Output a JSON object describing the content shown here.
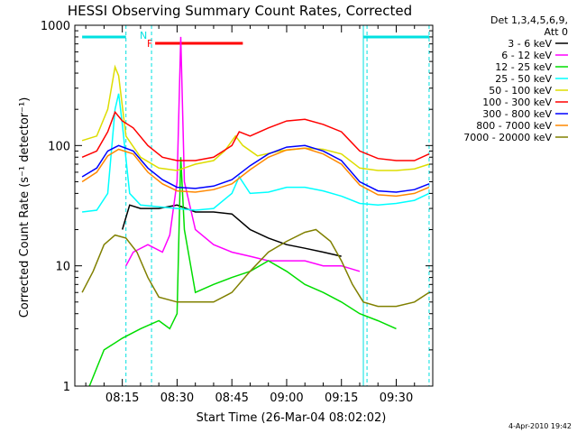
{
  "chart_data": {
    "type": "line",
    "title": "HESSI Observing Summary Count Rates, Corrected",
    "xlabel": "Start Time (26-Mar-04 08:02:02)",
    "ylabel": "Corrected Count Rate (s⁻¹ detector⁻¹)",
    "y_scale": "log",
    "ylim": [
      1,
      1000
    ],
    "xlim": [
      "08:02",
      "09:40"
    ],
    "x_ticks": [
      "08:15",
      "08:30",
      "08:45",
      "09:00",
      "09:15",
      "09:30"
    ],
    "y_ticks": [
      "1",
      "10",
      "100",
      "1000"
    ],
    "legend_header": [
      "Det 1,3,4,5,6,9,",
      "Att 0"
    ],
    "footer_date": "4-Apr-2010 19:42",
    "flags": {
      "N_label": "N",
      "F_label": "F"
    },
    "series": [
      {
        "name": "3 - 6 keV",
        "color": "#000000",
        "points": [
          [
            "08:15",
            20
          ],
          [
            "08:17",
            32
          ],
          [
            "08:20",
            30
          ],
          [
            "08:25",
            30
          ],
          [
            "08:30",
            32
          ],
          [
            "08:35",
            28
          ],
          [
            "08:40",
            28
          ],
          [
            "08:45",
            27
          ],
          [
            "08:50",
            20
          ],
          [
            "08:55",
            17
          ],
          [
            "09:00",
            15
          ],
          [
            "09:05",
            14
          ],
          [
            "09:10",
            13
          ],
          [
            "09:15",
            12
          ]
        ]
      },
      {
        "name": "6 - 12 keV",
        "color": "#ff00ff",
        "points": [
          [
            "08:16",
            10
          ],
          [
            "08:18",
            13
          ],
          [
            "08:22",
            15
          ],
          [
            "08:26",
            13
          ],
          [
            "08:28",
            18
          ],
          [
            "08:30",
            50
          ],
          [
            "08:31",
            800
          ],
          [
            "08:32",
            50
          ],
          [
            "08:35",
            20
          ],
          [
            "08:40",
            15
          ],
          [
            "08:45",
            13
          ],
          [
            "08:50",
            12
          ],
          [
            "08:55",
            11
          ],
          [
            "09:00",
            11
          ],
          [
            "09:05",
            11
          ],
          [
            "09:10",
            10
          ],
          [
            "09:15",
            10
          ],
          [
            "09:20",
            9
          ]
        ]
      },
      {
        "name": "12 - 25 keV",
        "color": "#00dd00",
        "points": [
          [
            "08:06",
            1
          ],
          [
            "08:10",
            2
          ],
          [
            "08:15",
            2.5
          ],
          [
            "08:20",
            3
          ],
          [
            "08:25",
            3.5
          ],
          [
            "08:28",
            3
          ],
          [
            "08:30",
            4
          ],
          [
            "08:31",
            80
          ],
          [
            "08:32",
            20
          ],
          [
            "08:35",
            6
          ],
          [
            "08:40",
            7
          ],
          [
            "08:45",
            8
          ],
          [
            "08:50",
            9
          ],
          [
            "08:55",
            11
          ],
          [
            "09:00",
            9
          ],
          [
            "09:05",
            7
          ],
          [
            "09:10",
            6
          ],
          [
            "09:15",
            5
          ],
          [
            "09:20",
            4
          ],
          [
            "09:25",
            3.5
          ],
          [
            "09:30",
            3
          ]
        ]
      },
      {
        "name": "25 - 50 keV",
        "color": "#00ffff",
        "points": [
          [
            "08:04",
            28
          ],
          [
            "08:08",
            29
          ],
          [
            "08:11",
            40
          ],
          [
            "08:13",
            200
          ],
          [
            "08:14",
            270
          ],
          [
            "08:15",
            150
          ],
          [
            "08:17",
            40
          ],
          [
            "08:20",
            32
          ],
          [
            "08:25",
            31
          ],
          [
            "08:30",
            30
          ],
          [
            "08:35",
            29
          ],
          [
            "08:40",
            30
          ],
          [
            "08:45",
            40
          ],
          [
            "08:47",
            55
          ],
          [
            "08:50",
            40
          ],
          [
            "08:55",
            41
          ],
          [
            "09:00",
            45
          ],
          [
            "09:05",
            45
          ],
          [
            "09:10",
            42
          ],
          [
            "09:15",
            38
          ],
          [
            "09:20",
            33
          ],
          [
            "09:25",
            32
          ],
          [
            "09:30",
            33
          ],
          [
            "09:35",
            35
          ],
          [
            "09:39",
            40
          ]
        ]
      },
      {
        "name": "50 - 100 keV",
        "color": "#dddd00",
        "points": [
          [
            "08:04",
            110
          ],
          [
            "08:08",
            120
          ],
          [
            "08:11",
            200
          ],
          [
            "08:13",
            450
          ],
          [
            "08:14",
            380
          ],
          [
            "08:16",
            120
          ],
          [
            "08:20",
            80
          ],
          [
            "08:25",
            65
          ],
          [
            "08:30",
            62
          ],
          [
            "08:35",
            70
          ],
          [
            "08:40",
            75
          ],
          [
            "08:43",
            90
          ],
          [
            "08:46",
            120
          ],
          [
            "08:48",
            100
          ],
          [
            "08:52",
            82
          ],
          [
            "08:58",
            90
          ],
          [
            "09:05",
            95
          ],
          [
            "09:10",
            93
          ],
          [
            "09:15",
            85
          ],
          [
            "09:20",
            65
          ],
          [
            "09:25",
            62
          ],
          [
            "09:30",
            62
          ],
          [
            "09:35",
            64
          ],
          [
            "09:39",
            70
          ]
        ]
      },
      {
        "name": "100 - 300 keV",
        "color": "#ff0000",
        "points": [
          [
            "08:04",
            80
          ],
          [
            "08:08",
            90
          ],
          [
            "08:11",
            130
          ],
          [
            "08:13",
            190
          ],
          [
            "08:15",
            160
          ],
          [
            "08:18",
            140
          ],
          [
            "08:22",
            100
          ],
          [
            "08:26",
            80
          ],
          [
            "08:30",
            75
          ],
          [
            "08:35",
            75
          ],
          [
            "08:40",
            80
          ],
          [
            "08:45",
            100
          ],
          [
            "08:47",
            130
          ],
          [
            "08:50",
            120
          ],
          [
            "08:55",
            140
          ],
          [
            "09:00",
            160
          ],
          [
            "09:05",
            165
          ],
          [
            "09:10",
            150
          ],
          [
            "09:15",
            130
          ],
          [
            "09:20",
            90
          ],
          [
            "09:25",
            78
          ],
          [
            "09:30",
            75
          ],
          [
            "09:35",
            75
          ],
          [
            "09:39",
            85
          ]
        ]
      },
      {
        "name": "300 - 800 keV",
        "color": "#0000ff",
        "points": [
          [
            "08:04",
            55
          ],
          [
            "08:08",
            65
          ],
          [
            "08:11",
            90
          ],
          [
            "08:14",
            100
          ],
          [
            "08:18",
            90
          ],
          [
            "08:22",
            65
          ],
          [
            "08:26",
            52
          ],
          [
            "08:30",
            45
          ],
          [
            "08:35",
            44
          ],
          [
            "08:40",
            46
          ],
          [
            "08:45",
            52
          ],
          [
            "08:50",
            68
          ],
          [
            "08:55",
            85
          ],
          [
            "09:00",
            97
          ],
          [
            "09:05",
            100
          ],
          [
            "09:10",
            90
          ],
          [
            "09:15",
            75
          ],
          [
            "09:20",
            50
          ],
          [
            "09:25",
            42
          ],
          [
            "09:30",
            41
          ],
          [
            "09:35",
            43
          ],
          [
            "09:39",
            48
          ]
        ]
      },
      {
        "name": "800 - 7000 keV",
        "color": "#ff8800",
        "points": [
          [
            "08:04",
            50
          ],
          [
            "08:08",
            60
          ],
          [
            "08:11",
            82
          ],
          [
            "08:14",
            93
          ],
          [
            "08:18",
            85
          ],
          [
            "08:22",
            60
          ],
          [
            "08:26",
            48
          ],
          [
            "08:30",
            42
          ],
          [
            "08:35",
            41
          ],
          [
            "08:40",
            43
          ],
          [
            "08:45",
            48
          ],
          [
            "08:50",
            63
          ],
          [
            "08:55",
            80
          ],
          [
            "09:00",
            92
          ],
          [
            "09:05",
            95
          ],
          [
            "09:10",
            85
          ],
          [
            "09:15",
            70
          ],
          [
            "09:20",
            47
          ],
          [
            "09:25",
            39
          ],
          [
            "09:30",
            38
          ],
          [
            "09:35",
            40
          ],
          [
            "09:39",
            45
          ]
        ]
      },
      {
        "name": "7000 - 20000 keV",
        "color": "#808000",
        "points": [
          [
            "08:04",
            6
          ],
          [
            "08:07",
            9
          ],
          [
            "08:10",
            15
          ],
          [
            "08:13",
            18
          ],
          [
            "08:16",
            17
          ],
          [
            "08:19",
            13
          ],
          [
            "08:22",
            8
          ],
          [
            "08:25",
            5.5
          ],
          [
            "08:30",
            5
          ],
          [
            "08:35",
            5
          ],
          [
            "08:40",
            5
          ],
          [
            "08:45",
            6
          ],
          [
            "08:50",
            9
          ],
          [
            "08:55",
            13
          ],
          [
            "09:00",
            16
          ],
          [
            "09:05",
            19
          ],
          [
            "09:08",
            20
          ],
          [
            "09:12",
            16
          ],
          [
            "09:15",
            11
          ],
          [
            "09:18",
            7
          ],
          [
            "09:21",
            5
          ],
          [
            "09:25",
            4.6
          ],
          [
            "09:30",
            4.6
          ],
          [
            "09:35",
            5
          ],
          [
            "09:39",
            6
          ]
        ]
      }
    ]
  }
}
